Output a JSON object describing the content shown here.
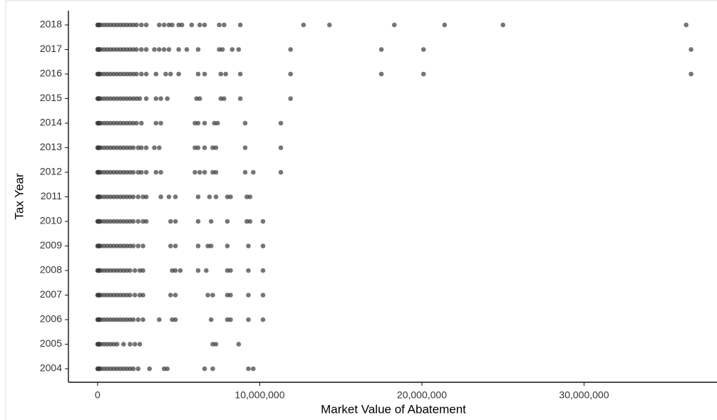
{
  "chart_data": {
    "type": "strip",
    "xlabel": "Market Value of Abatement",
    "ylabel": "Tax Year",
    "color": "#3a3a3a",
    "categories": [
      "2004",
      "2005",
      "2006",
      "2007",
      "2008",
      "2009",
      "2010",
      "2011",
      "2012",
      "2013",
      "2014",
      "2015",
      "2016",
      "2017",
      "2018"
    ],
    "values": [
      [
        0,
        30000,
        60000,
        100000,
        200000,
        400000,
        600000,
        800000,
        1000000,
        1200000,
        1400000,
        1600000,
        1800000,
        2000000,
        2200000,
        2500000,
        3200000,
        4100000,
        4300000,
        6600000,
        7100000,
        9300000,
        9600000
      ],
      [
        0,
        30000,
        60000,
        100000,
        200000,
        400000,
        600000,
        800000,
        1000000,
        1200000,
        1600000,
        2000000,
        2300000,
        2600000,
        7100000,
        7300000,
        8700000
      ],
      [
        0,
        30000,
        60000,
        100000,
        200000,
        400000,
        600000,
        800000,
        1000000,
        1200000,
        1400000,
        1600000,
        1800000,
        2000000,
        2200000,
        2500000,
        2800000,
        3800000,
        4600000,
        4800000,
        7000000,
        8000000,
        8200000,
        9300000,
        10200000
      ],
      [
        0,
        30000,
        60000,
        100000,
        200000,
        400000,
        600000,
        800000,
        1000000,
        1200000,
        1400000,
        1600000,
        1800000,
        2000000,
        2300000,
        2600000,
        2800000,
        4500000,
        4800000,
        6800000,
        7100000,
        8000000,
        8200000,
        9300000,
        10200000
      ],
      [
        0,
        30000,
        60000,
        100000,
        200000,
        400000,
        600000,
        800000,
        1000000,
        1200000,
        1400000,
        1600000,
        1800000,
        2000000,
        2300000,
        2600000,
        2800000,
        4600000,
        4800000,
        5100000,
        6200000,
        6700000,
        8000000,
        8200000,
        9300000,
        10200000
      ],
      [
        0,
        30000,
        60000,
        100000,
        200000,
        400000,
        600000,
        800000,
        1000000,
        1200000,
        1400000,
        1600000,
        1800000,
        2000000,
        2200000,
        2500000,
        2800000,
        4500000,
        4800000,
        6200000,
        6800000,
        7000000,
        8000000,
        9300000,
        10200000
      ],
      [
        0,
        30000,
        60000,
        100000,
        200000,
        400000,
        600000,
        800000,
        1000000,
        1200000,
        1400000,
        1600000,
        1800000,
        2000000,
        2200000,
        2500000,
        2800000,
        3000000,
        4500000,
        4800000,
        6200000,
        7000000,
        8000000,
        9200000,
        9400000,
        10200000
      ],
      [
        0,
        30000,
        60000,
        100000,
        200000,
        400000,
        600000,
        800000,
        1000000,
        1200000,
        1400000,
        1600000,
        1800000,
        2000000,
        2200000,
        2500000,
        2800000,
        3000000,
        3900000,
        4400000,
        4800000,
        6200000,
        6900000,
        7300000,
        8000000,
        8200000,
        9200000,
        9400000
      ],
      [
        0,
        30000,
        60000,
        100000,
        200000,
        400000,
        600000,
        800000,
        1000000,
        1200000,
        1400000,
        1600000,
        1800000,
        2000000,
        2200000,
        2500000,
        2700000,
        3000000,
        3600000,
        3900000,
        6000000,
        6300000,
        6600000,
        7100000,
        7300000,
        9100000,
        9600000,
        11300000
      ],
      [
        0,
        30000,
        60000,
        100000,
        200000,
        400000,
        600000,
        800000,
        1000000,
        1200000,
        1400000,
        1600000,
        1800000,
        2000000,
        2200000,
        2500000,
        2700000,
        3000000,
        3500000,
        3800000,
        6000000,
        6200000,
        6600000,
        7100000,
        7300000,
        9100000,
        11300000
      ],
      [
        0,
        30000,
        60000,
        100000,
        200000,
        400000,
        600000,
        800000,
        1000000,
        1200000,
        1400000,
        1600000,
        1800000,
        2000000,
        2200000,
        2400000,
        2700000,
        3600000,
        3900000,
        6000000,
        6200000,
        6600000,
        7200000,
        7400000,
        9100000,
        11300000
      ],
      [
        0,
        30000,
        60000,
        100000,
        200000,
        400000,
        600000,
        800000,
        1000000,
        1200000,
        1400000,
        1600000,
        1800000,
        2000000,
        2200000,
        2400000,
        2600000,
        3000000,
        3600000,
        3900000,
        4300000,
        6100000,
        6300000,
        7600000,
        7800000,
        8800000,
        11900000
      ],
      [
        0,
        30000,
        60000,
        100000,
        200000,
        400000,
        600000,
        800000,
        1000000,
        1200000,
        1400000,
        1600000,
        1800000,
        2000000,
        2200000,
        2400000,
        2700000,
        3000000,
        3600000,
        4200000,
        4500000,
        5000000,
        6200000,
        6600000,
        7600000,
        7900000,
        8800000,
        11900000,
        17500000,
        20100000,
        36600000
      ],
      [
        0,
        30000,
        60000,
        100000,
        200000,
        400000,
        600000,
        800000,
        1000000,
        1200000,
        1400000,
        1600000,
        1800000,
        2000000,
        2200000,
        2400000,
        2700000,
        3000000,
        3500000,
        3800000,
        4100000,
        4400000,
        5000000,
        5500000,
        6200000,
        7500000,
        7700000,
        8300000,
        8700000,
        11900000,
        17500000,
        20100000,
        36600000
      ],
      [
        0,
        30000,
        60000,
        100000,
        200000,
        400000,
        600000,
        800000,
        1000000,
        1200000,
        1400000,
        1600000,
        1800000,
        2000000,
        2200000,
        2400000,
        2700000,
        3000000,
        3800000,
        4100000,
        4400000,
        4600000,
        5000000,
        5200000,
        5800000,
        6300000,
        6600000,
        7500000,
        7800000,
        8800000,
        12700000,
        14300000,
        18300000,
        21400000,
        25000000,
        36300000
      ]
    ],
    "xlim": [
      -1800000,
      38200000
    ],
    "xticks": [
      0,
      {
        "value": 10000000,
        "label": "10,000,000"
      },
      {
        "value": 20000000,
        "label": "20,000,000"
      },
      {
        "value": 30000000,
        "label": "30,000,000"
      }
    ]
  }
}
